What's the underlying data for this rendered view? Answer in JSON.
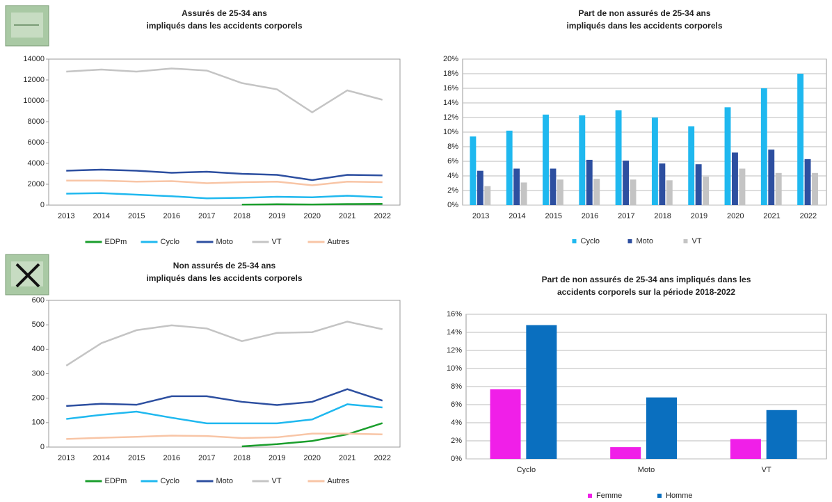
{
  "chart_data": [
    {
      "type": "line",
      "title": [
        "Assurés de 25-34 ans",
        "impliqués dans les accidents corporels"
      ],
      "categories": [
        "2013",
        "2014",
        "2015",
        "2016",
        "2017",
        "2018",
        "2019",
        "2020",
        "2021",
        "2022"
      ],
      "series": [
        {
          "name": "EDPm",
          "color": "#1a9e2c",
          "values": [
            null,
            null,
            null,
            null,
            null,
            50,
            80,
            60,
            100,
            120
          ]
        },
        {
          "name": "Cyclo",
          "color": "#1fb8ef",
          "values": [
            1100,
            1150,
            1000,
            850,
            650,
            700,
            800,
            750,
            900,
            750
          ]
        },
        {
          "name": "Moto",
          "color": "#2d4fa0",
          "values": [
            3300,
            3400,
            3300,
            3100,
            3200,
            3000,
            2900,
            2400,
            2900,
            2850
          ]
        },
        {
          "name": "VT",
          "color": "#c4c4c4",
          "values": [
            12800,
            13000,
            12800,
            13100,
            12900,
            11700,
            11100,
            8900,
            11000,
            10100
          ]
        },
        {
          "name": "Autres",
          "color": "#f8c5a6",
          "values": [
            2350,
            2350,
            2250,
            2300,
            2100,
            2200,
            2250,
            1900,
            2250,
            2200
          ]
        }
      ],
      "ylim": [
        0,
        14000
      ],
      "yticks": [
        0,
        2000,
        4000,
        6000,
        8000,
        10000,
        12000,
        14000
      ],
      "grid": false
    },
    {
      "type": "bar",
      "title": [
        "Part de non assurés de 25-34 ans",
        "impliqués dans les accidents corporels"
      ],
      "categories": [
        "2013",
        "2014",
        "2015",
        "2016",
        "2017",
        "2018",
        "2019",
        "2020",
        "2021",
        "2022"
      ],
      "series": [
        {
          "name": "Cyclo",
          "color": "#1fb8ef",
          "values": [
            9.4,
            10.2,
            12.4,
            12.3,
            13,
            12,
            10.8,
            13.4,
            16,
            18
          ]
        },
        {
          "name": "Moto",
          "color": "#2d4fa0",
          "values": [
            4.7,
            5,
            5,
            6.2,
            6.1,
            5.7,
            5.6,
            7.2,
            7.6,
            6.3
          ]
        },
        {
          "name": "VT",
          "color": "#c4c4c4",
          "values": [
            2.6,
            3.1,
            3.5,
            3.6,
            3.5,
            3.4,
            3.9,
            5,
            4.4,
            4.4
          ]
        }
      ],
      "ylim": [
        0,
        20
      ],
      "yticks": [
        {
          "value": 0,
          "label": "0%"
        },
        {
          "value": 2,
          "label": "2%"
        },
        {
          "value": 4,
          "label": "4%"
        },
        {
          "value": 6,
          "label": "6%"
        },
        {
          "value": 8,
          "label": "8%"
        },
        {
          "value": 10,
          "label": "10%"
        },
        {
          "value": 12,
          "label": "12%"
        },
        {
          "value": 14,
          "label": "14%"
        },
        {
          "value": 16,
          "label": "16%"
        },
        {
          "value": 18,
          "label": "18%"
        },
        {
          "value": 20,
          "label": "20%"
        }
      ],
      "grid": true
    },
    {
      "type": "line",
      "title": [
        "Non assurés de 25-34 ans",
        "impliqués dans les accidents corporels"
      ],
      "categories": [
        "2013",
        "2014",
        "2015",
        "2016",
        "2017",
        "2018",
        "2019",
        "2020",
        "2021",
        "2022"
      ],
      "series": [
        {
          "name": "EDPm",
          "color": "#1a9e2c",
          "values": [
            null,
            null,
            null,
            null,
            null,
            3,
            12,
            25,
            52,
            98
          ]
        },
        {
          "name": "Cyclo",
          "color": "#1fb8ef",
          "values": [
            115,
            132,
            145,
            120,
            97,
            97,
            97,
            113,
            175,
            162
          ]
        },
        {
          "name": "Moto",
          "color": "#2d4fa0",
          "values": [
            168,
            177,
            173,
            208,
            208,
            185,
            172,
            185,
            237,
            190
          ]
        },
        {
          "name": "VT",
          "color": "#c4c4c4",
          "values": [
            333,
            425,
            478,
            498,
            485,
            433,
            467,
            470,
            513,
            482
          ]
        },
        {
          "name": "Autres",
          "color": "#f8c5a6",
          "values": [
            33,
            38,
            42,
            47,
            45,
            37,
            40,
            55,
            55,
            52
          ]
        }
      ],
      "ylim": [
        0,
        600
      ],
      "yticks": [
        0,
        100,
        200,
        300,
        400,
        500,
        600
      ],
      "grid": false
    },
    {
      "type": "bar",
      "title": [
        "Part de non assurés de 25-34 ans impliqués dans les",
        "accidents corporels sur la période 2018-2022"
      ],
      "categories": [
        "Cyclo",
        "Moto",
        "VT"
      ],
      "series": [
        {
          "name": "Femme",
          "color": "#f01fe8",
          "values": [
            7.7,
            1.3,
            2.2
          ]
        },
        {
          "name": "Homme",
          "color": "#0a6fbf",
          "values": [
            14.8,
            6.8,
            5.4
          ]
        }
      ],
      "ylim": [
        0,
        16
      ],
      "yticks": [
        {
          "value": 0,
          "label": "0%"
        },
        {
          "value": 2,
          "label": "2%"
        },
        {
          "value": 4,
          "label": "4%"
        },
        {
          "value": 6,
          "label": "6%"
        },
        {
          "value": 8,
          "label": "8%"
        },
        {
          "value": 10,
          "label": "10%"
        },
        {
          "value": 12,
          "label": "12%"
        },
        {
          "value": 14,
          "label": "14%"
        },
        {
          "value": 16,
          "label": "16%"
        }
      ],
      "grid": true
    }
  ]
}
